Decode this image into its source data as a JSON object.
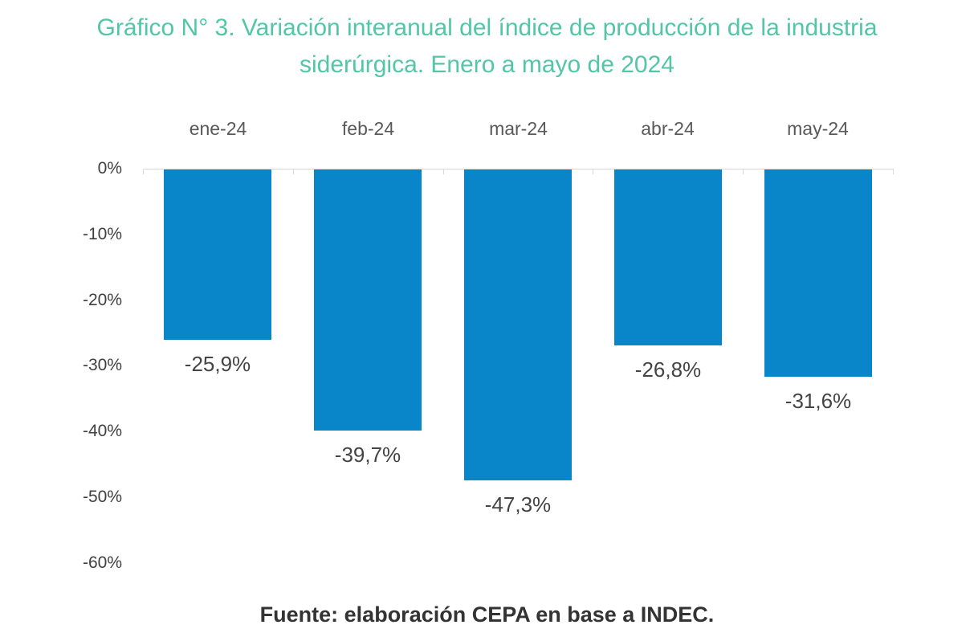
{
  "title": {
    "line1": "Gráfico N° 3. Variación interanual del índice de producción de la industria",
    "line2": "siderúrgica. Enero a mayo de 2024",
    "color": "#52c6a6"
  },
  "source": {
    "text": "Fuente: elaboración CEPA en base a INDEC.",
    "color": "#333333"
  },
  "chart_data": {
    "type": "bar",
    "title": "Gráfico N° 3. Variación interanual del índice de producción de la industria siderúrgica. Enero a mayo de 2024",
    "categories": [
      "ene-24",
      "feb-24",
      "mar-24",
      "abr-24",
      "may-24"
    ],
    "values": [
      -25.9,
      -39.7,
      -47.3,
      -26.8,
      -31.6
    ],
    "value_labels": [
      "-25,9%",
      "-39,7%",
      "-47,3%",
      "-26,8%",
      "-31,6%"
    ],
    "xlabel": "",
    "ylabel": "",
    "ylim": [
      -60,
      0
    ],
    "y_ticks": [
      {
        "value": 0,
        "label": "0%"
      },
      {
        "value": -10,
        "label": "-10%"
      },
      {
        "value": -20,
        "label": "-20%"
      },
      {
        "value": -30,
        "label": "-30%"
      },
      {
        "value": -40,
        "label": "-40%"
      },
      {
        "value": -50,
        "label": "-50%"
      },
      {
        "value": -60,
        "label": "-60%"
      }
    ],
    "grid": false,
    "legend": false,
    "category_label_position": "top",
    "data_label_position": "outside-end-below",
    "bar_color": "#0886c9",
    "axis_color": "#d9d9d9",
    "category_label_color": "#595959",
    "tick_label_color": "#404040",
    "data_label_color": "#444444",
    "source_note": "Fuente: elaboración CEPA en base a INDEC."
  }
}
